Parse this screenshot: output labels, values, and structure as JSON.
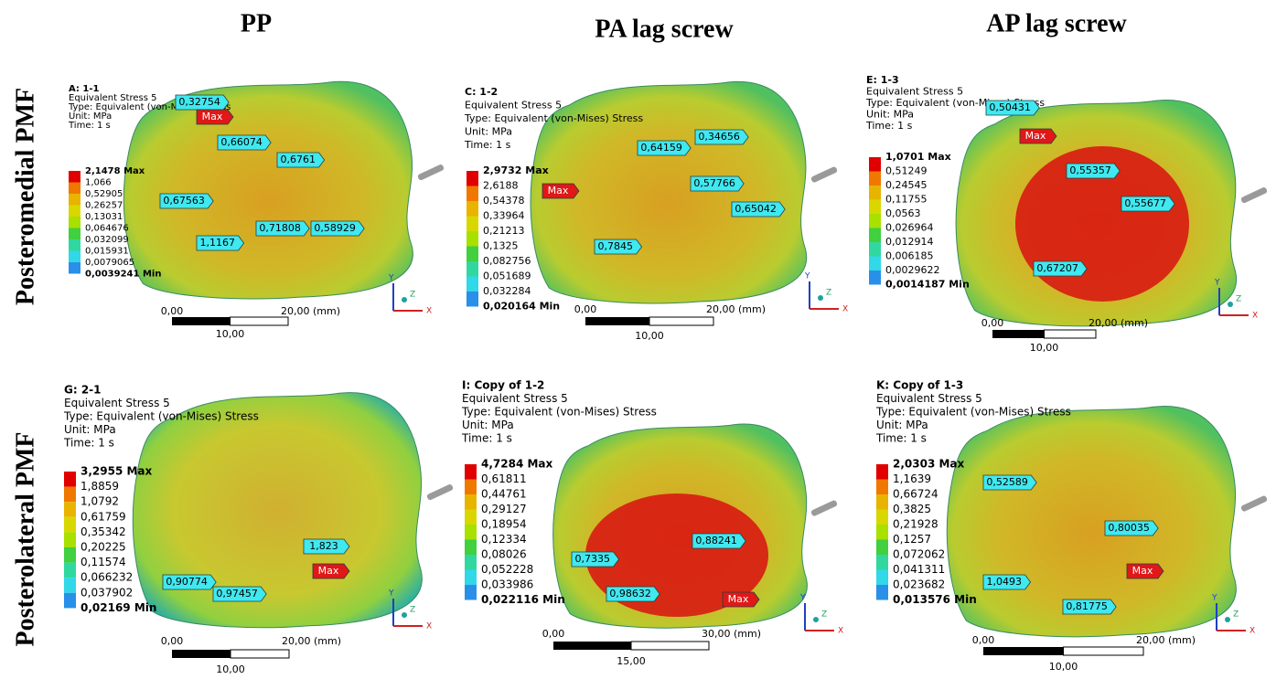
{
  "columns": [
    "PP",
    "PA lag screw",
    "AP lag screw"
  ],
  "rows": [
    "Posteromedial PMF",
    "Posterolateral PMF"
  ],
  "triad": [
    "Y",
    "Z",
    "X"
  ],
  "panels": [
    {
      "id": "A: 1-1",
      "lines": [
        "Equivalent Stress 5",
        "Type: Equivalent (von-Mises) Stress",
        "Unit: MPa",
        "Time: 1 s"
      ],
      "legend": [
        "2,1478 Max",
        "1,066",
        "0,52905",
        "0,26257",
        "0,13031",
        "0,064676",
        "0,032099",
        "0,015931",
        "0,0079065",
        "0,0039241 Min"
      ],
      "probes": [
        "0,32754",
        "Max",
        "0,66074",
        "0,6761",
        "0,67563",
        "0,71808",
        "0,58929",
        "1,1167"
      ],
      "scale": {
        "left": "0,00",
        "right": "20,00 (mm)",
        "mid": "10,00"
      }
    },
    {
      "id": "C: 1-2",
      "lines": [
        "Equivalent Stress 5",
        "Type: Equivalent (von-Mises) Stress",
        "Unit: MPa",
        "Time: 1 s"
      ],
      "legend": [
        "2,9732 Max",
        "2,6188",
        "0,54378",
        "0,33964",
        "0,21213",
        "0,1325",
        "0,082756",
        "0,051689",
        "0,032284",
        "0,020164 Min"
      ],
      "probes": [
        "Max",
        "0,64159",
        "0,34656",
        "0,57766",
        "0,65042",
        "0,7845"
      ],
      "scale": {
        "left": "0,00",
        "right": "20,00 (mm)",
        "mid": "10,00"
      }
    },
    {
      "id": "E: 1-3",
      "lines": [
        "Equivalent Stress 5",
        "Type: Equivalent (von-Mises) Stress",
        "Unit: MPa",
        "Time: 1 s"
      ],
      "legend": [
        "1,0701 Max",
        "0,51249",
        "0,24545",
        "0,11755",
        "0,0563",
        "0,026964",
        "0,012914",
        "0,006185",
        "0,0029622",
        "0,0014187 Min"
      ],
      "probes": [
        "0,50431",
        "Max",
        "0,55357",
        "0,55677",
        "0,67207"
      ],
      "scale": {
        "left": "0,00",
        "right": "20,00 (mm)",
        "mid": "10,00"
      }
    },
    {
      "id": "G: 2-1",
      "lines": [
        "Equivalent Stress 5",
        "Type: Equivalent (von-Mises) Stress",
        "Unit: MPa",
        "Time: 1 s"
      ],
      "legend": [
        "3,2955 Max",
        "1,8859",
        "1,0792",
        "0,61759",
        "0,35342",
        "0,20225",
        "0,11574",
        "0,066232",
        "0,037902",
        "0,02169 Min"
      ],
      "probes": [
        "1,823",
        "Max",
        "0,90774",
        "0,97457"
      ],
      "scale": {
        "left": "0,00",
        "right": "20,00 (mm)",
        "mid": "10,00"
      }
    },
    {
      "id": "I: Copy of 1-2",
      "lines": [
        "Equivalent Stress 5",
        "Type: Equivalent (von-Mises) Stress",
        "Unit: MPa",
        "Time: 1 s"
      ],
      "legend": [
        "4,7284 Max",
        "0,61811",
        "0,44761",
        "0,29127",
        "0,18954",
        "0,12334",
        "0,08026",
        "0,052228",
        "0,033986",
        "0,022116 Min"
      ],
      "probes": [
        "0,88241",
        "0,7335",
        "0,98632",
        "Max"
      ],
      "scale": {
        "left": "0,00",
        "right": "30,00 (mm)",
        "mid": "15,00"
      }
    },
    {
      "id": "K: Copy of 1-3",
      "lines": [
        "Equivalent Stress 5",
        "Type: Equivalent (von-Mises) Stress",
        "Unit: MPa",
        "Time: 1 s"
      ],
      "legend": [
        "2,0303 Max",
        "1,1639",
        "0,66724",
        "0,3825",
        "0,21928",
        "0,1257",
        "0,072062",
        "0,041311",
        "0,023682",
        "0,013576 Min"
      ],
      "probes": [
        "0,52589",
        "0,80035",
        "Max",
        "1,0493",
        "0,81775"
      ],
      "scale": {
        "left": "0,00",
        "right": "20,00 (mm)",
        "mid": "10,00"
      }
    }
  ]
}
